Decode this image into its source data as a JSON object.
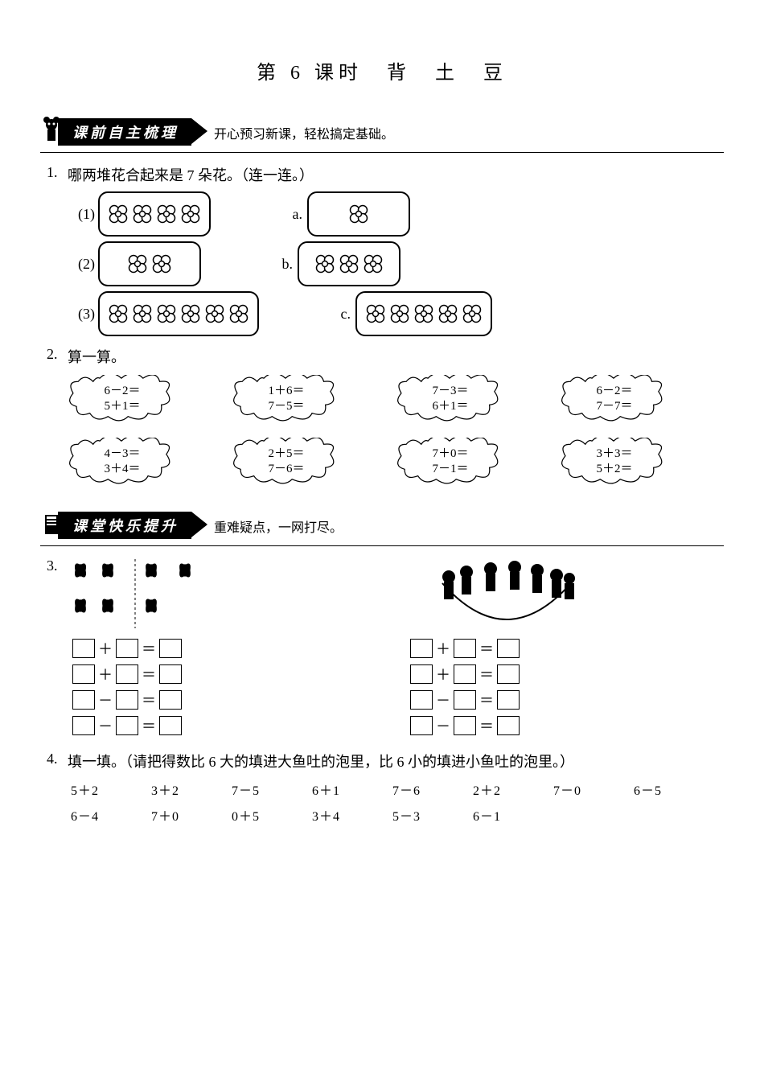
{
  "title": "第 6 课时　背　土　豆",
  "sections": {
    "pre": {
      "banner": "课前自主梳理",
      "sub": "开心预习新课，轻松搞定基础。"
    },
    "class": {
      "banner": "课堂快乐提升",
      "sub": "重难疑点，一网打尽。"
    }
  },
  "q1": {
    "num": "1.",
    "text": "哪两堆花合起来是 7 朵花。（连一连。）",
    "left": [
      {
        "label": "(1)",
        "count": 4,
        "rows": [
          2,
          2
        ]
      },
      {
        "label": "(2)",
        "count": 2,
        "rows": [
          2
        ]
      },
      {
        "label": "(3)",
        "count": 6,
        "rows": [
          3,
          3
        ]
      }
    ],
    "right": [
      {
        "label": "a.",
        "count": 1,
        "rows": [
          1
        ]
      },
      {
        "label": "b.",
        "count": 3,
        "rows": [
          1,
          2
        ]
      },
      {
        "label": "c.",
        "count": 5,
        "rows": [
          2,
          3
        ]
      }
    ]
  },
  "q2": {
    "num": "2.",
    "text": "算一算。",
    "clouds": [
      [
        {
          "l1": "6－2＝",
          "l2": "5＋1＝"
        },
        {
          "l1": "4－3＝",
          "l2": "3＋4＝"
        }
      ],
      [
        {
          "l1": "1＋6＝",
          "l2": "7－5＝"
        },
        {
          "l1": "2＋5＝",
          "l2": "7－6＝"
        }
      ],
      [
        {
          "l1": "7－3＝",
          "l2": "6＋1＝"
        },
        {
          "l1": "7＋0＝",
          "l2": "7－1＝"
        }
      ],
      [
        {
          "l1": "6－2＝",
          "l2": "7－7＝"
        },
        {
          "l1": "3＋3＝",
          "l2": "5＋2＝"
        }
      ]
    ]
  },
  "q3": {
    "num": "3.",
    "ops": [
      "＋",
      "＋",
      "－",
      "－"
    ]
  },
  "q4": {
    "num": "4.",
    "text": "填一填。（请把得数比 6 大的填进大鱼吐的泡里，比 6 小的填进小鱼吐的泡里。）",
    "items": [
      "5＋2",
      "3＋2",
      "7－5",
      "6＋1",
      "7－6",
      "2＋2",
      "7－0",
      "6－5",
      "6－4",
      "7＋0",
      "0＋5",
      "3＋4",
      "5－3",
      "6－1"
    ]
  }
}
